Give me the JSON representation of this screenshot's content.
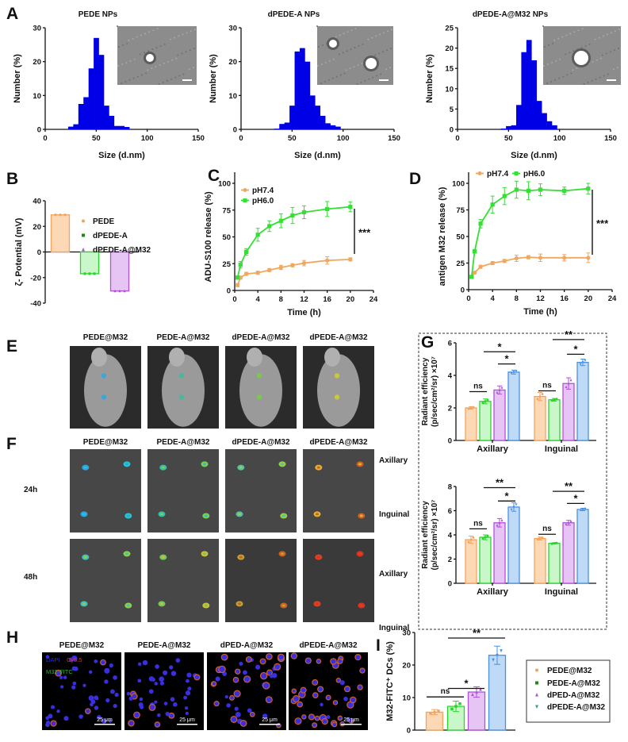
{
  "colors": {
    "histogram": "#0000E6",
    "orange": "#F2A45E",
    "orange_fill": "#FDD8B5",
    "green": "#2BD62B",
    "green_fill": "#C9F7C9",
    "purple": "#B150DA",
    "purple_fill": "#E6C5F5",
    "blue": "#4A90E2",
    "blue_fill": "#BFDAF7",
    "line_ph74": "#F0A860",
    "line_ph60": "#33E033"
  },
  "figure": {
    "panel_labels": [
      "A",
      "B",
      "C",
      "D",
      "E",
      "F",
      "G",
      "H",
      "I"
    ],
    "E": {
      "titles": [
        "PEDE@M32",
        "PEDE-A@M32",
        "dPEDE-A@M32",
        "dPEDE-A@M32"
      ]
    },
    "F": {
      "titles": [
        "PEDE@M32",
        "PEDE-A@M32",
        "dPEDE-A@M32",
        "dPEDE-A@M32"
      ],
      "rows": [
        "24h",
        "48h"
      ],
      "side_labels": [
        "Axillary",
        "Inguinal",
        "Axillary",
        "Inguinal"
      ]
    },
    "H": {
      "titles": [
        "PEDE@M32",
        "PEDE-A@M32",
        "dPED-A@M32",
        "dPEDE-A@M32"
      ],
      "channels": [
        "DAPI",
        "Cy5.5",
        "M32-FITC"
      ],
      "channel_colors": [
        "#3030E0",
        "#E03030",
        "#30B040"
      ],
      "scale_bar": "25 μm"
    }
  },
  "chart_data": [
    {
      "id": "A1",
      "type": "bar",
      "subtype": "histogram",
      "title": "PEDE NPs",
      "xlabel": "Size (d.nm)",
      "ylabel": "Number (%)",
      "xlim": [
        0,
        150
      ],
      "ylim": [
        0,
        30
      ],
      "xticks": [
        0,
        50,
        100,
        150
      ],
      "yticks": [
        0,
        10,
        20,
        30
      ],
      "bin_width": 5,
      "bin_centers": [
        25,
        30,
        35,
        40,
        45,
        50,
        55,
        60,
        65,
        70,
        75,
        80
      ],
      "values": [
        0.8,
        1.5,
        7.5,
        9.5,
        18,
        27,
        22,
        7,
        4,
        1,
        1,
        0.7
      ]
    },
    {
      "id": "A2",
      "type": "bar",
      "subtype": "histogram",
      "title": "dPEDE-A NPs",
      "xlabel": "Size (d.nm)",
      "ylabel": "Number (%)",
      "xlim": [
        0,
        150
      ],
      "ylim": [
        0,
        30
      ],
      "xticks": [
        0,
        50,
        100,
        150
      ],
      "yticks": [
        0,
        10,
        20,
        30
      ],
      "bin_width": 5,
      "bin_centers": [
        35,
        40,
        45,
        50,
        55,
        60,
        65,
        70,
        75,
        80,
        85,
        90,
        95
      ],
      "values": [
        0.2,
        1.6,
        2,
        7,
        23,
        24,
        20,
        10,
        7,
        4,
        1.8,
        1.2,
        0.8
      ]
    },
    {
      "id": "A3",
      "type": "bar",
      "subtype": "histogram",
      "title": "dPEDE-A@M32 NPs",
      "xlabel": "Size (d.nm)",
      "ylabel": "Number (%)",
      "xlim": [
        0,
        150
      ],
      "ylim": [
        0,
        25
      ],
      "xticks": [
        0,
        50,
        100,
        150
      ],
      "yticks": [
        0,
        5,
        10,
        15,
        20,
        25
      ],
      "bin_width": 5,
      "bin_centers": [
        45,
        50,
        55,
        60,
        65,
        70,
        75,
        80,
        85,
        90,
        95
      ],
      "values": [
        0.2,
        0.8,
        1,
        6,
        19,
        22,
        17,
        7,
        4,
        2,
        1
      ]
    },
    {
      "id": "B",
      "type": "bar",
      "ylabel": "ζ- Potential (mV)",
      "ylim": [
        -40,
        40
      ],
      "yticks": [
        -40,
        -20,
        0,
        20,
        40
      ],
      "categories": [
        "PEDE",
        "dPEDE-A",
        "dPEDE-A@M32"
      ],
      "values": [
        29,
        -17,
        -30.5
      ],
      "legend": "right"
    },
    {
      "id": "C",
      "type": "line",
      "xlabel": "Time (h)",
      "ylabel": "ADU-S100 release (%)",
      "xlim": [
        0,
        24
      ],
      "ylim": [
        0,
        100
      ],
      "xticks": [
        0,
        4,
        8,
        12,
        16,
        20,
        24
      ],
      "yticks": [
        0,
        25,
        50,
        75,
        100
      ],
      "x": [
        0.5,
        1,
        2,
        4,
        6,
        8,
        10,
        12,
        16,
        20
      ],
      "series": [
        {
          "name": "pH7.4",
          "values": [
            5,
            12,
            15.5,
            16.5,
            19,
            21.5,
            23.5,
            25.5,
            28,
            29
          ],
          "errors": [
            1.5,
            1.5,
            1.5,
            1.5,
            1.5,
            2,
            1.5,
            2.5,
            3.5,
            1.5
          ]
        },
        {
          "name": "pH6.0",
          "values": [
            12,
            24,
            36,
            52,
            60,
            65,
            70,
            73,
            76,
            78
          ],
          "errors": [
            1.5,
            3,
            3,
            6,
            5,
            6.5,
            7.5,
            6,
            7,
            4.5
          ]
        }
      ],
      "annotation": "***",
      "legend": "top-left"
    },
    {
      "id": "D",
      "type": "line",
      "xlabel": "Time (h)",
      "ylabel": "antigen M32 release (%)",
      "xlim": [
        0,
        24
      ],
      "ylim": [
        0,
        100
      ],
      "xticks": [
        0,
        4,
        8,
        12,
        16,
        20,
        24
      ],
      "yticks": [
        0,
        25,
        50,
        75,
        100
      ],
      "x": [
        0.5,
        1,
        2,
        4,
        6,
        8,
        10,
        12,
        16,
        20
      ],
      "series": [
        {
          "name": "pH7.4",
          "values": [
            12,
            16,
            21.5,
            25,
            27,
            29.5,
            30.5,
            30,
            30,
            30
          ],
          "errors": [
            1,
            1,
            1.5,
            1.5,
            1.5,
            3,
            1.5,
            3.5,
            3,
            4.5
          ]
        },
        {
          "name": "pH6.0",
          "values": [
            12,
            36,
            62,
            80,
            88,
            94,
            93,
            94,
            93,
            95
          ],
          "errors": [
            1,
            1.5,
            4,
            8,
            8,
            8,
            8.5,
            5.5,
            3.5,
            5
          ]
        }
      ],
      "annotation": "***",
      "legend": "top"
    },
    {
      "id": "G-top",
      "type": "bar",
      "ylabel": [
        "Radiant efficiency",
        "(p/sec/cm²/sr) ×10⁷"
      ],
      "ylim": [
        0,
        6
      ],
      "yticks": [
        0,
        2,
        4,
        6
      ],
      "categories": [
        "Axillary",
        "Inguinal"
      ],
      "series": [
        {
          "values": [
            2.0,
            2.7
          ],
          "errors": [
            0.08,
            0.25
          ]
        },
        {
          "values": [
            2.4,
            2.5
          ],
          "errors": [
            0.15,
            0.08
          ]
        },
        {
          "values": [
            3.1,
            3.5
          ],
          "errors": [
            0.25,
            0.35
          ]
        },
        {
          "values": [
            4.2,
            4.8
          ],
          "errors": [
            0.12,
            0.2
          ]
        }
      ],
      "significance": [
        {
          "group": 0,
          "from": 0,
          "to": 1,
          "y": 3.0,
          "label": "ns"
        },
        {
          "group": 0,
          "from": 1,
          "to": 3,
          "y": 5.45,
          "label": "*"
        },
        {
          "group": 0,
          "from": 2,
          "to": 3,
          "y": 4.7,
          "label": "*"
        },
        {
          "group": 1,
          "from": 0,
          "to": 1,
          "y": 3.05,
          "label": "ns"
        },
        {
          "group": 1,
          "from": 1,
          "to": 3,
          "y": 6.2,
          "label": "**"
        },
        {
          "group": 1,
          "from": 2,
          "to": 3,
          "y": 5.3,
          "label": "*"
        }
      ]
    },
    {
      "id": "G-bottom",
      "type": "bar",
      "ylabel": [
        "Radiant efficiency",
        "(p/sec/cm²/sr) ×10⁷"
      ],
      "ylim": [
        0,
        8
      ],
      "yticks": [
        0,
        2,
        4,
        6,
        8
      ],
      "categories": [
        "Axillary",
        "Inguinal"
      ],
      "series": [
        {
          "values": [
            3.6,
            3.7
          ],
          "errors": [
            0.3,
            0.12
          ]
        },
        {
          "values": [
            3.8,
            3.3
          ],
          "errors": [
            0.2,
            0.05
          ]
        },
        {
          "values": [
            5.0,
            5.0
          ],
          "errors": [
            0.35,
            0.2
          ]
        },
        {
          "values": [
            6.3,
            6.1
          ],
          "errors": [
            0.35,
            0.1
          ]
        }
      ],
      "significance": [
        {
          "group": 0,
          "from": 0,
          "to": 1,
          "y": 4.5,
          "label": "ns"
        },
        {
          "group": 0,
          "from": 1,
          "to": 3,
          "y": 7.9,
          "label": "**"
        },
        {
          "group": 0,
          "from": 2,
          "to": 3,
          "y": 6.8,
          "label": "*"
        },
        {
          "group": 1,
          "from": 0,
          "to": 1,
          "y": 4.05,
          "label": "ns"
        },
        {
          "group": 1,
          "from": 1,
          "to": 3,
          "y": 7.6,
          "label": "**"
        },
        {
          "group": 1,
          "from": 2,
          "to": 3,
          "y": 6.6,
          "label": "*"
        }
      ]
    },
    {
      "id": "I",
      "type": "bar",
      "ylabel": "M32-FITC⁺ DCs (%)",
      "ylim": [
        0,
        30
      ],
      "yticks": [
        0,
        10,
        20,
        30
      ],
      "categories": [
        "PEDE@M32",
        "PEDE-A@M32",
        "dPED-A@M32",
        "dPEDE-A@M32"
      ],
      "values": [
        5.5,
        7.3,
        11.7,
        23
      ],
      "errors": [
        0.8,
        1.6,
        1.6,
        2.8
      ],
      "significance": [
        {
          "from": 0,
          "to": 1,
          "y": 10.2,
          "label": "ns"
        },
        {
          "from": 1,
          "to": 2,
          "y": 12.8,
          "label": "*"
        },
        {
          "from": 1,
          "to": 3,
          "y": 28.3,
          "label": "**"
        }
      ],
      "legend": "right"
    }
  ]
}
